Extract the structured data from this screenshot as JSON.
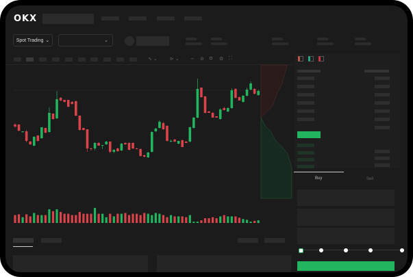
{
  "header": {
    "logo": "OKX"
  },
  "toolbar": {
    "market_selector": "Spot Trading",
    "pair_dropdown_icon": "chevron-down-icon"
  },
  "orderbook": {
    "view_icons": [
      "orderbook-both-icon",
      "orderbook-buy-icon",
      "orderbook-sell-icon"
    ]
  },
  "trade": {
    "tabs": [
      "Buy",
      "Sell"
    ],
    "active_tab": "Buy",
    "slider_percent": 0
  },
  "colors": {
    "up": "#22b45e",
    "down": "#d9434a",
    "background": "#1b1b1b",
    "accent": "#22b45e"
  },
  "chart_data": {
    "type": "candlestick",
    "candles": [
      [
        118,
        120,
        113,
        115
      ],
      [
        118,
        118,
        108,
        109
      ],
      [
        107,
        108,
        106,
        108
      ],
      [
        108,
        110,
        92,
        94
      ],
      [
        93,
        94,
        88,
        89
      ],
      [
        87,
        101,
        86,
        100
      ],
      [
        102,
        102,
        93,
        94
      ],
      [
        98,
        114,
        97,
        114
      ],
      [
        113,
        113,
        105,
        106
      ],
      [
        107,
        143,
        106,
        135
      ],
      [
        134,
        134,
        125,
        126
      ],
      [
        127,
        167,
        126,
        155
      ],
      [
        157,
        158,
        152,
        153
      ],
      [
        154,
        154,
        150,
        151
      ],
      [
        154,
        154,
        143,
        144
      ],
      [
        151,
        152,
        147,
        148
      ],
      [
        152,
        153,
        130,
        131
      ],
      [
        131,
        131,
        109,
        110
      ],
      [
        113,
        113,
        109,
        110
      ],
      [
        111,
        111,
        78,
        83
      ],
      [
        83,
        84,
        80,
        82
      ],
      [
        83,
        92,
        80,
        91
      ],
      [
        91,
        92,
        87,
        87
      ],
      [
        87,
        88,
        82,
        88
      ],
      [
        89,
        94,
        88,
        93
      ],
      [
        93,
        93,
        76,
        78
      ],
      [
        78,
        82,
        76,
        81
      ],
      [
        83,
        84,
        78,
        79
      ],
      [
        80,
        91,
        79,
        90
      ],
      [
        91,
        92,
        88,
        89
      ],
      [
        91,
        92,
        80,
        81
      ],
      [
        91,
        92,
        82,
        83
      ],
      [
        83,
        84,
        82,
        82
      ],
      [
        82,
        83,
        71,
        72
      ],
      [
        73,
        74,
        70,
        71
      ],
      [
        70,
        78,
        69,
        77
      ],
      [
        78,
        108,
        77,
        107
      ],
      [
        108,
        113,
        107,
        112
      ],
      [
        113,
        124,
        112,
        122
      ],
      [
        120,
        122,
        110,
        111
      ],
      [
        116,
        117,
        93,
        94
      ],
      [
        93,
        96,
        92,
        94
      ],
      [
        96,
        97,
        92,
        93
      ],
      [
        90,
        94,
        89,
        94
      ],
      [
        95,
        96,
        85,
        85
      ],
      [
        93,
        94,
        91,
        91
      ],
      [
        93,
        115,
        92,
        114
      ],
      [
        113,
        129,
        112,
        128
      ],
      [
        128,
        185,
        127,
        170
      ],
      [
        172,
        172,
        157,
        158
      ],
      [
        159,
        160,
        134,
        135
      ],
      [
        137,
        138,
        135,
        135
      ],
      [
        135,
        136,
        128,
        128
      ],
      [
        130,
        130,
        128,
        128
      ],
      [
        126,
        142,
        125,
        140
      ],
      [
        142,
        144,
        139,
        139
      ],
      [
        137,
        143,
        136,
        142
      ],
      [
        142,
        171,
        141,
        168
      ],
      [
        170,
        171,
        156,
        157
      ],
      [
        158,
        159,
        153,
        153
      ],
      [
        151,
        161,
        150,
        160
      ],
      [
        160,
        172,
        159,
        169
      ],
      [
        169,
        181,
        168,
        178
      ],
      [
        170,
        171,
        162,
        163
      ],
      [
        161,
        169,
        160,
        167
      ]
    ],
    "volume": [
      30,
      33,
      22,
      33,
      25,
      38,
      30,
      30,
      30,
      52,
      45,
      52,
      42,
      35,
      35,
      30,
      30,
      42,
      35,
      35,
      35,
      57,
      35,
      35,
      22,
      35,
      25,
      35,
      35,
      38,
      30,
      35,
      35,
      30,
      38,
      35,
      30,
      38,
      35,
      30,
      22,
      30,
      25,
      25,
      25,
      22,
      30,
      5,
      5,
      10,
      18,
      18,
      22,
      18,
      25,
      30,
      25,
      25,
      25,
      20,
      15,
      12,
      5,
      8,
      10
    ]
  }
}
